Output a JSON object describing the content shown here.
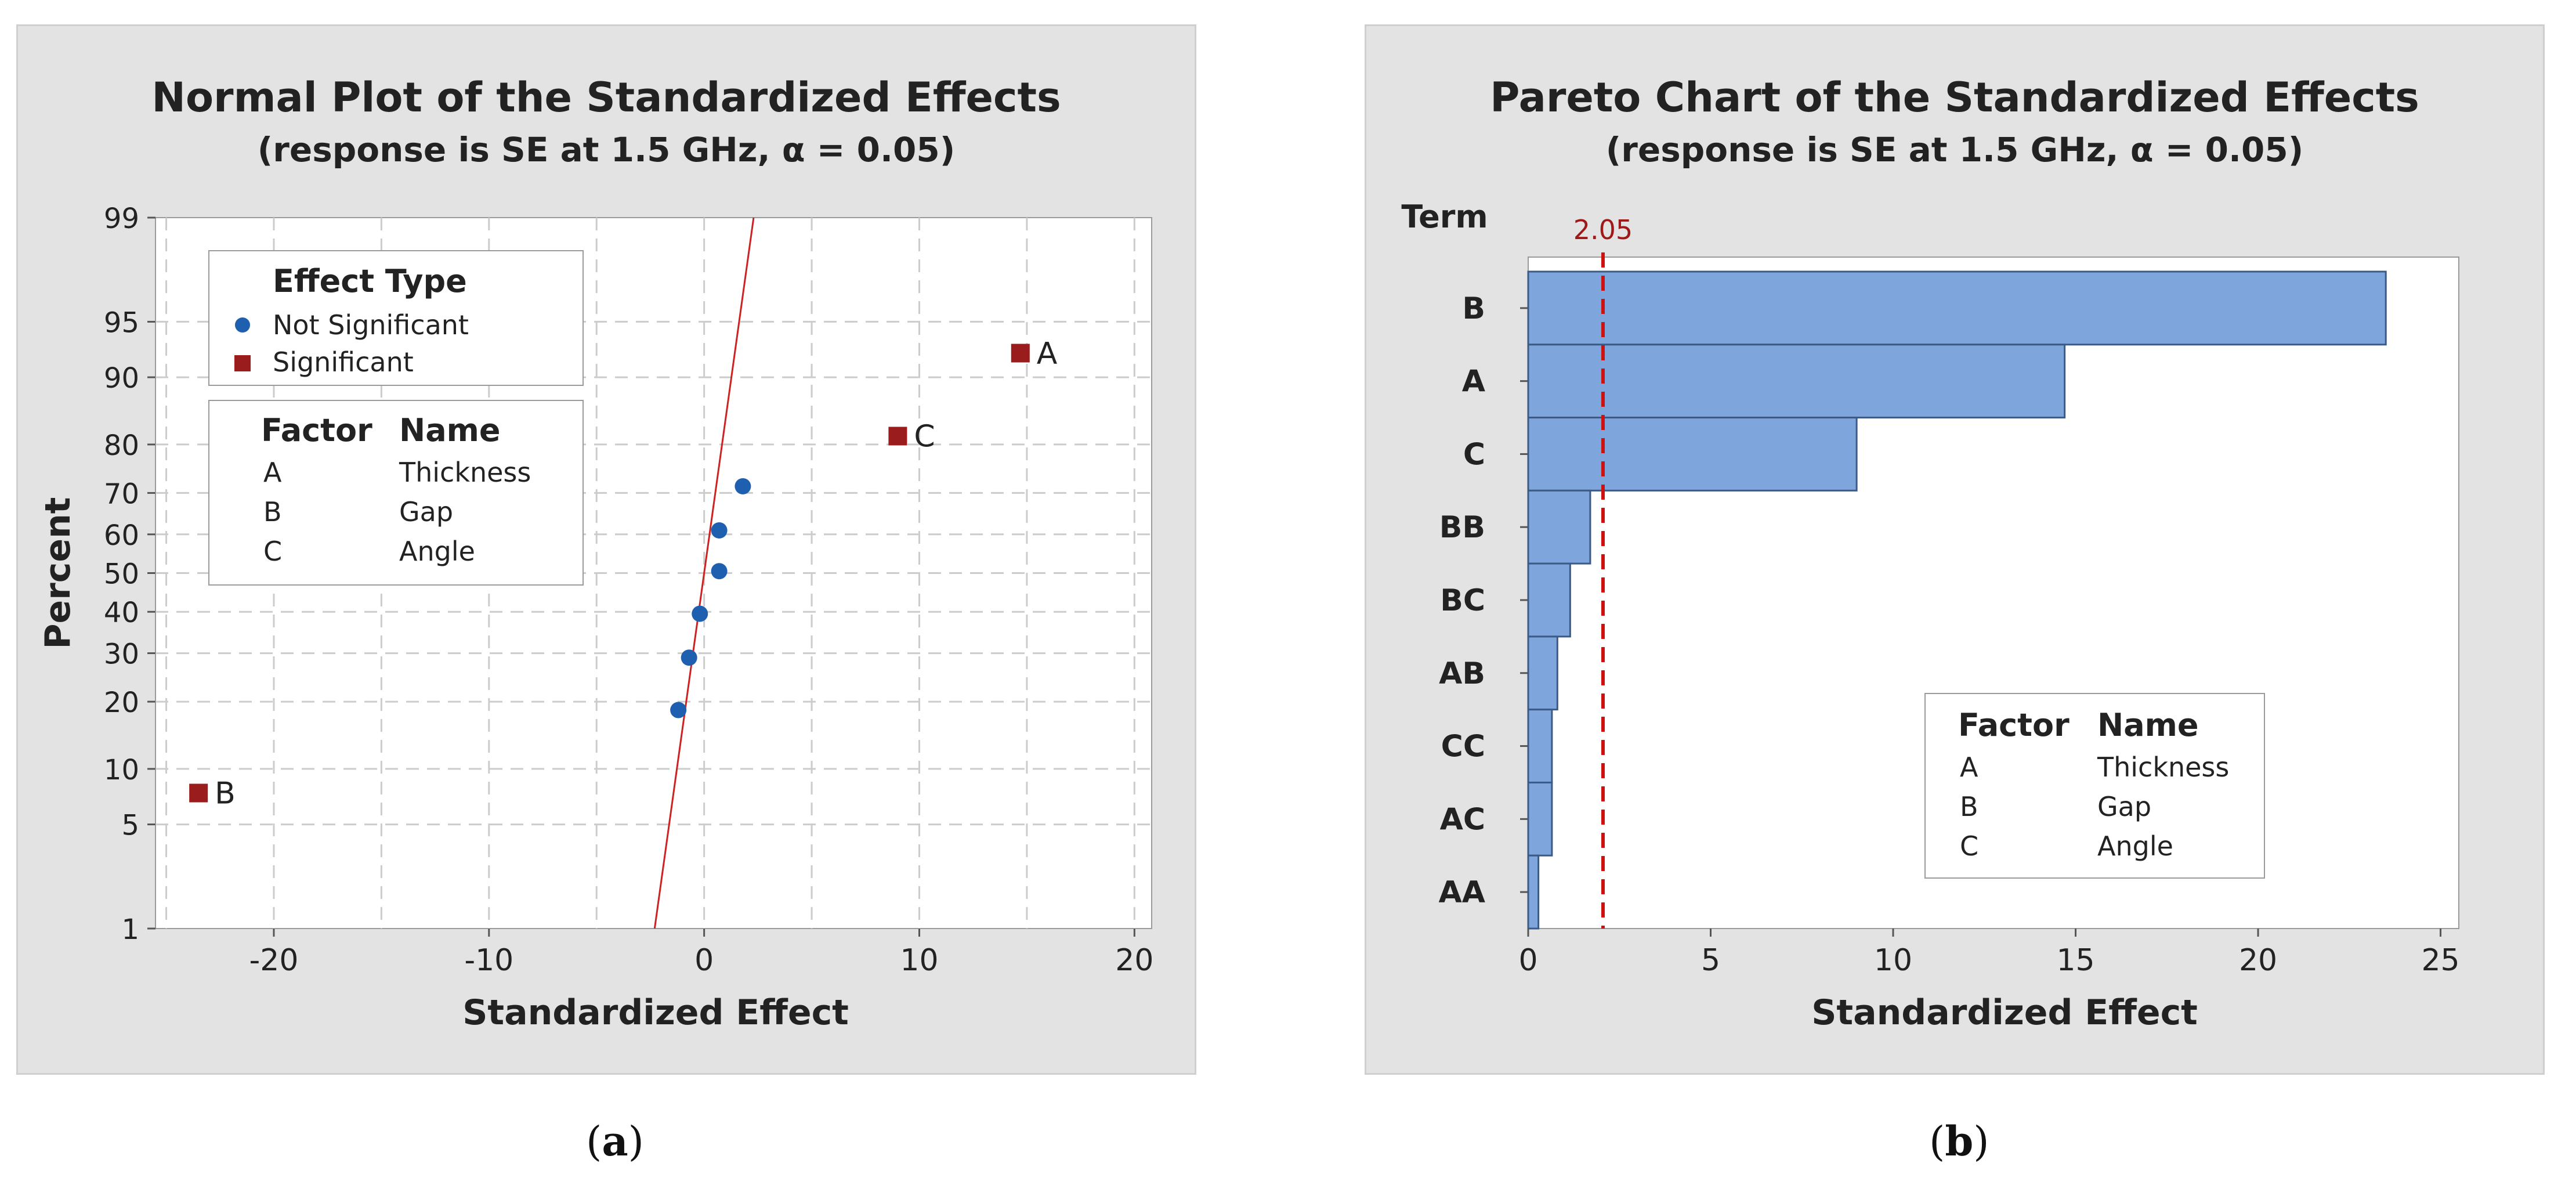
{
  "colors": {
    "panel_bg": "#e3e3e3",
    "plot_bg": "#ffffff",
    "grid": "#cccccc",
    "fit_line": "#cc2222",
    "not_significant": "#1f5fb0",
    "significant": "#9b1c1c",
    "bar_fill": "#7ea6dc",
    "bar_edge": "#3b5b86",
    "ref_line": "#cc1111",
    "ref_label": "#a01818"
  },
  "chart_data": [
    {
      "type": "scatter",
      "title": "Normal Plot of the Standardized Effects",
      "subtitle": "(response is SE at 1.5 GHz, α = 0.05)",
      "xlabel": "Standardized Effect",
      "ylabel": "Percent",
      "xlim": [
        -25.5,
        20.8
      ],
      "xticks": [
        -20,
        -10,
        0,
        10,
        20
      ],
      "xtick_labels": [
        "-20",
        "-10",
        "0",
        "10",
        "20"
      ],
      "y_scale": "normal-probability",
      "ylim": [
        1,
        99
      ],
      "yticks": [
        1,
        5,
        10,
        20,
        30,
        40,
        50,
        60,
        70,
        80,
        90,
        95,
        99
      ],
      "ytick_labels": [
        "1",
        "5",
        "10",
        "20",
        "30",
        "40",
        "50",
        "60",
        "70",
        "80",
        "90",
        "95",
        "99"
      ],
      "x_gridlines": [
        -25,
        -20,
        -15,
        -10,
        -5,
        0,
        5,
        10,
        15,
        20
      ],
      "fit_line": {
        "x1": -2.3,
        "y1": 1,
        "x2": 2.3,
        "y2": 99
      },
      "legend_title": "Effect Type",
      "series": [
        {
          "name": "Not Significant",
          "marker": "circle",
          "points": [
            [
              -1.2,
              18.5
            ],
            [
              -0.7,
              29
            ],
            [
              -0.2,
              39.5
            ],
            [
              0.7,
              50.5
            ],
            [
              0.7,
              61
            ],
            [
              1.8,
              71.5
            ]
          ]
        },
        {
          "name": "Significant",
          "marker": "square",
          "points": [
            [
              -23.5,
              7.5
            ],
            [
              14.7,
              92.5
            ],
            [
              9.0,
              81.5
            ]
          ],
          "labels": [
            "B",
            "A",
            "C"
          ]
        }
      ],
      "factor_table": {
        "headers": [
          "Factor",
          "Name"
        ],
        "rows": [
          [
            "A",
            "Thickness"
          ],
          [
            "B",
            "Gap"
          ],
          [
            "C",
            "Angle"
          ]
        ]
      },
      "caption": "a"
    },
    {
      "type": "bar",
      "orientation": "horizontal",
      "title": "Pareto Chart of the Standardized Effects",
      "subtitle": "(response is SE at 1.5 GHz, α = 0.05)",
      "xlabel": "Standardized Effect",
      "ylabel": "Term",
      "xlim": [
        0,
        25.5
      ],
      "xticks": [
        0,
        5,
        10,
        15,
        20,
        25
      ],
      "xtick_labels": [
        "0",
        "5",
        "10",
        "15",
        "20",
        "25"
      ],
      "categories": [
        "B",
        "A",
        "C",
        "BB",
        "BC",
        "AB",
        "CC",
        "AC",
        "AA"
      ],
      "values": [
        23.5,
        14.7,
        9.0,
        1.7,
        1.15,
        0.8,
        0.65,
        0.65,
        0.28
      ],
      "reference_line": {
        "value": 2.05,
        "label": "2.05"
      },
      "factor_table": {
        "headers": [
          "Factor",
          "Name"
        ],
        "rows": [
          [
            "A",
            "Thickness"
          ],
          [
            "B",
            "Gap"
          ],
          [
            "C",
            "Angle"
          ]
        ]
      },
      "caption": "b"
    }
  ]
}
